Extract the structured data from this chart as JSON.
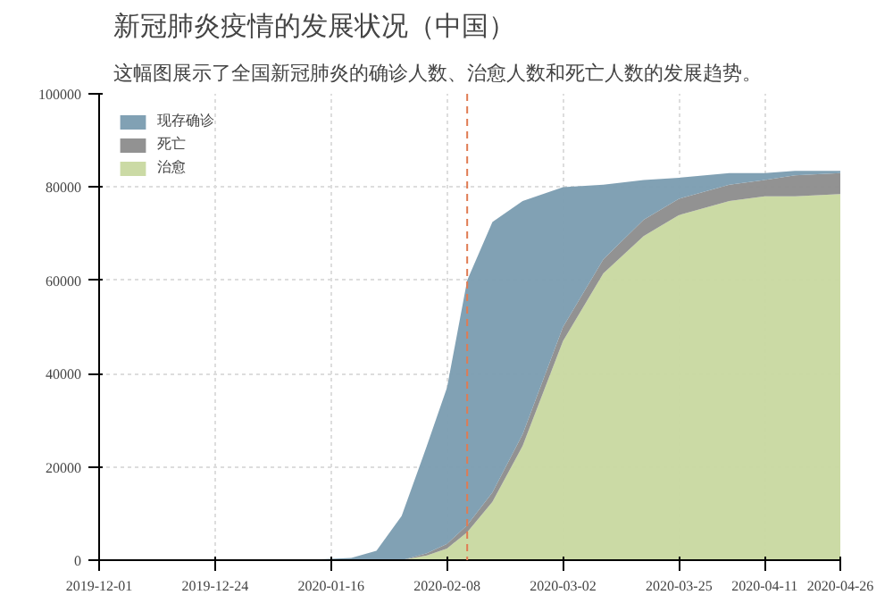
{
  "chart_data": {
    "type": "area",
    "stacked": true,
    "title": "新冠肺炎疫情的发展状况（中国）",
    "subtitle": "这幅图展示了全国新冠肺炎的确诊人数、治愈人数和死亡人数的发展趋势。",
    "x": [
      "2020-01-10",
      "2020-01-20",
      "2020-01-25",
      "2020-01-30",
      "2020-02-04",
      "2020-02-08",
      "2020-02-12",
      "2020-02-17",
      "2020-02-23",
      "2020-03-02",
      "2020-03-10",
      "2020-03-18",
      "2020-03-25",
      "2020-04-04",
      "2020-04-11",
      "2020-04-17",
      "2020-04-26"
    ],
    "series": [
      {
        "name": "治愈",
        "color": "#c8d8a0",
        "values": [
          0,
          0,
          0,
          0,
          1000,
          2500,
          6000,
          12500,
          24500,
          47000,
          61500,
          69500,
          74000,
          77000,
          78000,
          78000,
          78500
        ]
      },
      {
        "name": "死亡",
        "color": "#8c8c8c",
        "values": [
          0,
          0,
          0,
          0,
          500,
          1000,
          1500,
          2000,
          2500,
          3000,
          3000,
          3500,
          3500,
          3500,
          3500,
          4500,
          4500
        ]
      },
      {
        "name": "现存确诊",
        "color": "#7a9cb0",
        "values": [
          0,
          500,
          2000,
          9500,
          23000,
          33500,
          52500,
          58000,
          50000,
          30000,
          16000,
          8500,
          4500,
          2500,
          1500,
          1000,
          500
        ]
      }
    ],
    "xlim": [
      "2019-12-01",
      "2020-04-26"
    ],
    "xticks": [
      "2019-12-01",
      "2019-12-24",
      "2020-01-16",
      "2020-02-08",
      "2020-03-02",
      "2020-03-25",
      "2020-04-11",
      "2020-04-26"
    ],
    "ylim": [
      0,
      100000
    ],
    "yticks": [
      0,
      20000,
      40000,
      60000,
      80000,
      100000
    ],
    "ref_lines": [
      {
        "axis": "x",
        "value": "2020-02-12",
        "color": "#e07b53",
        "line_style": "dashed"
      }
    ],
    "grid": true,
    "legend": "top left"
  }
}
